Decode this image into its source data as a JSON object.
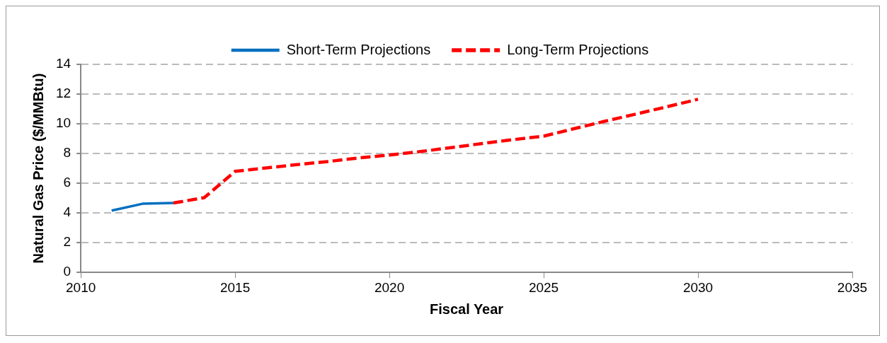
{
  "chart_data": {
    "type": "line",
    "xlabel": "Fiscal Year",
    "ylabel": "Natural Gas Price ($/MMBtu)",
    "xlim": [
      2010,
      2035
    ],
    "xticks": [
      2010,
      2015,
      2020,
      2025,
      2030,
      2035
    ],
    "ylim": [
      0,
      14
    ],
    "yticks": [
      0,
      2,
      4,
      6,
      8,
      10,
      12,
      14
    ],
    "grid": "y",
    "legend": "top",
    "marker": "none",
    "series": [
      {
        "name": "Short-Term Projections",
        "color": "#0070c0",
        "line_style": "solid",
        "x": [
          2011,
          2012,
          2013
        ],
        "values": [
          4.16,
          4.62,
          4.67
        ]
      },
      {
        "name": "Long-Term Projections",
        "color": "#ff0000",
        "line_style": "dashed",
        "x": [
          2013,
          2014,
          2015,
          2016,
          2017,
          2018,
          2019,
          2020,
          2021,
          2022,
          2023,
          2024,
          2025,
          2026,
          2027,
          2028,
          2029,
          2030
        ],
        "values": [
          4.67,
          5.03,
          6.8,
          7.03,
          7.25,
          7.46,
          7.7,
          7.9,
          8.13,
          8.4,
          8.67,
          8.93,
          9.17,
          9.68,
          10.18,
          10.66,
          11.15,
          11.65
        ]
      }
    ]
  }
}
